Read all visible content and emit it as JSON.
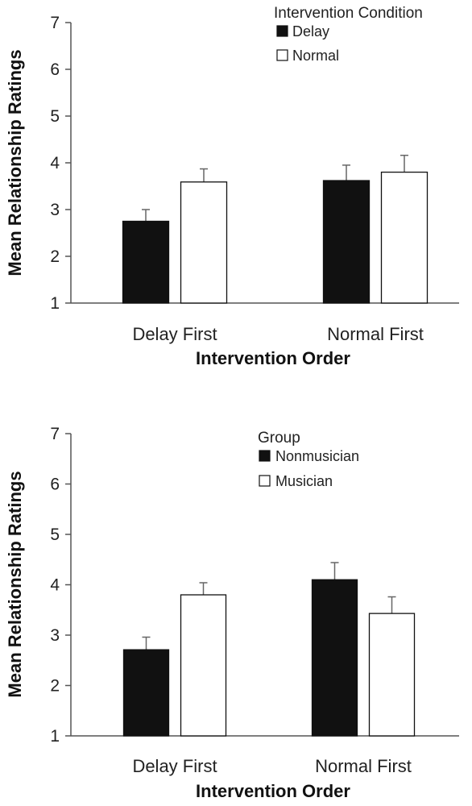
{
  "chart_data": [
    {
      "type": "bar",
      "categories": [
        "Delay First",
        "Normal First"
      ],
      "series": [
        {
          "name": "Delay",
          "values": [
            2.75,
            3.62
          ],
          "errors": [
            0.25,
            0.33
          ],
          "fill": "#111111"
        },
        {
          "name": "Normal",
          "values": [
            3.59,
            3.8
          ],
          "errors": [
            0.28,
            0.36
          ],
          "fill": "#ffffff"
        }
      ],
      "xlabel": "Intervention Order",
      "ylabel": "Mean Relationship Ratings",
      "ylim": [
        1,
        7
      ],
      "yticks": [
        "1",
        "2",
        "3",
        "4",
        "5",
        "6",
        "7"
      ],
      "legend": {
        "title": "Intervention Condition",
        "placement": "top-right"
      },
      "grid": false
    },
    {
      "type": "bar",
      "categories": [
        "Delay First",
        "Normal First"
      ],
      "series": [
        {
          "name": "Nonmusician",
          "values": [
            2.71,
            4.1
          ],
          "errors": [
            0.25,
            0.34
          ],
          "fill": "#111111"
        },
        {
          "name": "Musician",
          "values": [
            3.8,
            3.43
          ],
          "errors": [
            0.24,
            0.33
          ],
          "fill": "#ffffff"
        }
      ],
      "xlabel": "Intervention Order",
      "ylabel": "Mean Relationship Ratings",
      "ylim": [
        1,
        7
      ],
      "yticks": [
        "1",
        "2",
        "3",
        "4",
        "5",
        "6",
        "7"
      ],
      "legend": {
        "title": "Group",
        "placement": "top-center"
      },
      "grid": false
    }
  ],
  "colors": {
    "bar_dark": "#111111",
    "bar_light": "#ffffff",
    "axis": "#555555",
    "errorbar": "#666666"
  }
}
